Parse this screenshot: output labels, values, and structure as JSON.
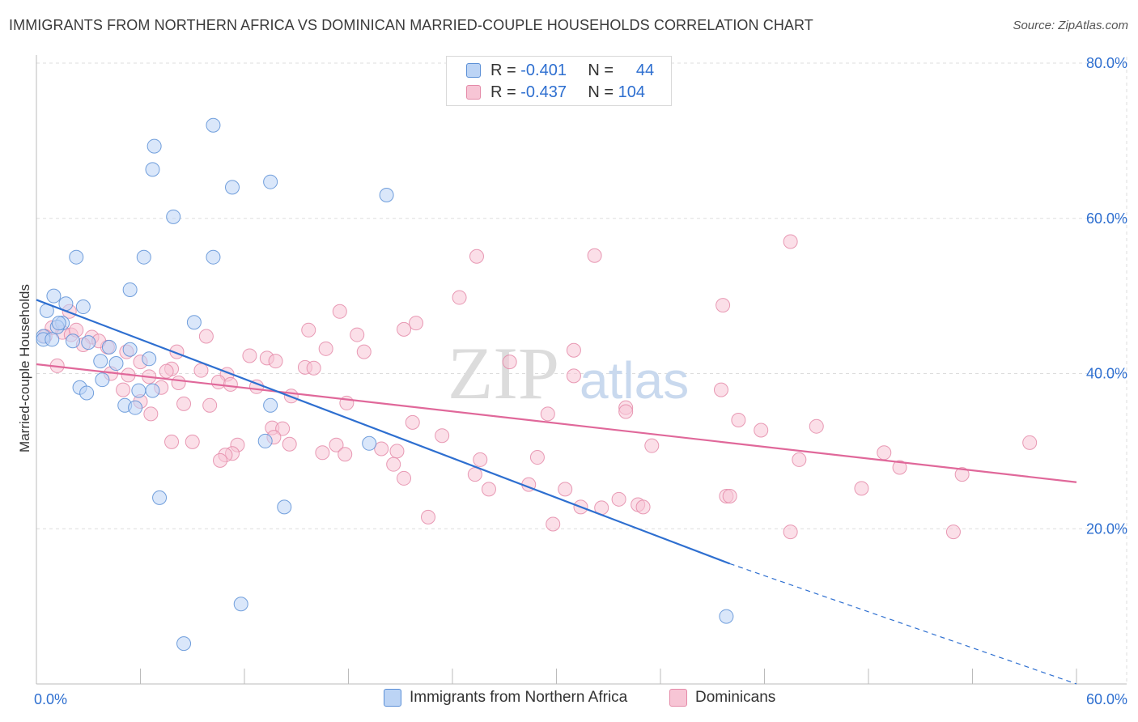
{
  "title": "IMMIGRANTS FROM NORTHERN AFRICA VS DOMINICAN MARRIED-COUPLE HOUSEHOLDS CORRELATION CHART",
  "source": "Source: ZipAtlas.com",
  "watermark": {
    "zip": "ZIP",
    "atlas": "atlas"
  },
  "legend_stats": [
    {
      "r_label": "R =",
      "r_value": "-0.401",
      "n_label": "N =",
      "n_value": "44"
    },
    {
      "r_label": "R =",
      "r_value": "-0.437",
      "n_label": "N =",
      "n_value": "104"
    }
  ],
  "chart_data": {
    "type": "scatter",
    "ylabel": "Married-couple Households",
    "xlabel": "",
    "xlim": [
      0,
      60
    ],
    "ylim": [
      0,
      80
    ],
    "x_tick_labels": [
      {
        "value": 0,
        "label": "0.0%"
      },
      {
        "value": 60,
        "label": "60.0%"
      }
    ],
    "y_tick_labels": [
      {
        "value": 20,
        "label": "20.0%"
      },
      {
        "value": 40,
        "label": "40.0%"
      },
      {
        "value": 60,
        "label": "60.0%"
      },
      {
        "value": 80,
        "label": "80.0%"
      }
    ],
    "grid": "horizontal dashed",
    "colors": {
      "blue_fill": "#bcd4f5",
      "blue_stroke": "#5b8fd6",
      "blue_line": "#2e6fd0",
      "pink_fill": "#f7c5d5",
      "pink_stroke": "#e48aa8",
      "pink_line": "#e0689a",
      "value_text": "#2e6fd0"
    },
    "series": [
      {
        "name": "Immigrants from Northern Africa",
        "color": "#bcd4f5",
        "trend": {
          "x0": 0,
          "y0": 49.5,
          "x1": 40,
          "y1": 15.5,
          "dashed_to_x": 60,
          "dashed_to_y": -0.6
        },
        "points": [
          [
            6.8,
            69.3
          ],
          [
            6.7,
            66.3
          ],
          [
            10.2,
            72.0
          ],
          [
            7.9,
            60.2
          ],
          [
            11.3,
            64.0
          ],
          [
            13.5,
            64.7
          ],
          [
            20.2,
            63.0
          ],
          [
            2.3,
            55.0
          ],
          [
            6.2,
            55.0
          ],
          [
            10.2,
            55.0
          ],
          [
            5.4,
            50.8
          ],
          [
            9.1,
            46.6
          ],
          [
            1.0,
            50.0
          ],
          [
            1.7,
            49.0
          ],
          [
            2.7,
            48.6
          ],
          [
            0.6,
            48.1
          ],
          [
            1.5,
            46.5
          ],
          [
            1.2,
            46.0
          ],
          [
            1.3,
            46.5
          ],
          [
            0.4,
            44.8
          ],
          [
            0.4,
            44.4
          ],
          [
            0.9,
            44.4
          ],
          [
            2.1,
            44.2
          ],
          [
            3.0,
            44.0
          ],
          [
            5.4,
            43.1
          ],
          [
            4.2,
            43.4
          ],
          [
            3.7,
            41.6
          ],
          [
            4.6,
            41.3
          ],
          [
            6.5,
            41.9
          ],
          [
            3.8,
            39.2
          ],
          [
            2.5,
            38.2
          ],
          [
            2.9,
            37.5
          ],
          [
            5.9,
            37.8
          ],
          [
            6.7,
            37.8
          ],
          [
            5.1,
            35.9
          ],
          [
            5.7,
            35.6
          ],
          [
            13.5,
            35.9
          ],
          [
            13.2,
            31.3
          ],
          [
            19.2,
            31.0
          ],
          [
            7.1,
            24.0
          ],
          [
            14.3,
            22.8
          ],
          [
            11.8,
            10.3
          ],
          [
            8.5,
            5.2
          ],
          [
            39.8,
            8.7
          ]
        ]
      },
      {
        "name": "Dominicans",
        "color": "#f7c5d5",
        "trend": {
          "x0": 0,
          "y0": 41.2,
          "x1": 60,
          "y1": 26.0
        },
        "points": [
          [
            43.5,
            57.0
          ],
          [
            25.4,
            55.1
          ],
          [
            32.2,
            55.2
          ],
          [
            24.4,
            49.8
          ],
          [
            39.6,
            48.8
          ],
          [
            17.5,
            48.0
          ],
          [
            1.9,
            48.0
          ],
          [
            15.7,
            45.6
          ],
          [
            21.9,
            46.5
          ],
          [
            21.2,
            45.7
          ],
          [
            18.5,
            45.0
          ],
          [
            9.8,
            44.8
          ],
          [
            3.2,
            44.7
          ],
          [
            1.5,
            45.3
          ],
          [
            2.0,
            45.0
          ],
          [
            0.9,
            45.9
          ],
          [
            2.7,
            43.7
          ],
          [
            4.1,
            43.4
          ],
          [
            8.1,
            42.8
          ],
          [
            16.7,
            43.2
          ],
          [
            18.9,
            42.8
          ],
          [
            31.0,
            43.0
          ],
          [
            12.3,
            42.3
          ],
          [
            13.3,
            42.0
          ],
          [
            13.8,
            41.6
          ],
          [
            27.3,
            41.5
          ],
          [
            15.5,
            40.8
          ],
          [
            16.0,
            40.7
          ],
          [
            7.8,
            40.6
          ],
          [
            7.5,
            40.3
          ],
          [
            1.2,
            41.0
          ],
          [
            4.3,
            40.0
          ],
          [
            5.3,
            39.8
          ],
          [
            6.5,
            39.6
          ],
          [
            11.0,
            39.9
          ],
          [
            31.0,
            39.7
          ],
          [
            8.2,
            38.8
          ],
          [
            10.5,
            38.9
          ],
          [
            12.7,
            38.3
          ],
          [
            11.2,
            38.6
          ],
          [
            5.0,
            37.9
          ],
          [
            39.5,
            37.9
          ],
          [
            6.0,
            36.4
          ],
          [
            8.5,
            36.1
          ],
          [
            10.0,
            35.9
          ],
          [
            17.9,
            36.2
          ],
          [
            14.7,
            37.1
          ],
          [
            34.0,
            35.6
          ],
          [
            34.0,
            35.1
          ],
          [
            6.6,
            34.8
          ],
          [
            29.5,
            34.8
          ],
          [
            40.5,
            34.0
          ],
          [
            45.0,
            33.2
          ],
          [
            21.7,
            33.7
          ],
          [
            13.6,
            33.0
          ],
          [
            14.2,
            32.9
          ],
          [
            41.8,
            32.7
          ],
          [
            13.7,
            31.8
          ],
          [
            7.8,
            31.2
          ],
          [
            9.0,
            31.2
          ],
          [
            11.6,
            30.8
          ],
          [
            14.6,
            30.9
          ],
          [
            17.3,
            30.8
          ],
          [
            23.4,
            32.0
          ],
          [
            35.5,
            30.7
          ],
          [
            20.8,
            30.0
          ],
          [
            16.5,
            29.8
          ],
          [
            17.8,
            29.6
          ],
          [
            11.3,
            29.7
          ],
          [
            10.9,
            29.5
          ],
          [
            19.9,
            30.3
          ],
          [
            10.6,
            28.8
          ],
          [
            25.6,
            28.9
          ],
          [
            28.9,
            29.2
          ],
          [
            48.9,
            29.8
          ],
          [
            57.3,
            31.1
          ],
          [
            44.0,
            28.9
          ],
          [
            20.6,
            28.3
          ],
          [
            49.8,
            27.9
          ],
          [
            25.3,
            27.0
          ],
          [
            53.4,
            27.0
          ],
          [
            21.2,
            26.5
          ],
          [
            28.4,
            25.7
          ],
          [
            26.1,
            25.1
          ],
          [
            30.5,
            25.1
          ],
          [
            47.6,
            25.2
          ],
          [
            39.8,
            24.2
          ],
          [
            40.0,
            24.2
          ],
          [
            33.6,
            23.8
          ],
          [
            31.4,
            22.8
          ],
          [
            32.6,
            22.7
          ],
          [
            34.7,
            23.1
          ],
          [
            35.0,
            22.8
          ],
          [
            22.6,
            21.5
          ],
          [
            29.8,
            20.6
          ],
          [
            43.5,
            19.6
          ],
          [
            52.9,
            19.6
          ],
          [
            6.0,
            41.5
          ],
          [
            7.2,
            38.2
          ],
          [
            3.6,
            44.2
          ],
          [
            0.5,
            44.8
          ],
          [
            2.3,
            45.6
          ],
          [
            5.2,
            42.8
          ],
          [
            9.5,
            40.4
          ]
        ]
      }
    ]
  }
}
